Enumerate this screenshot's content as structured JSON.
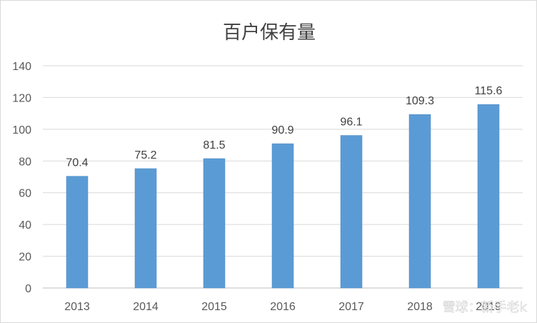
{
  "chart_data": {
    "type": "bar",
    "title": "百户保有量",
    "categories": [
      "2013",
      "2014",
      "2015",
      "2016",
      "2017",
      "2018",
      "2019"
    ],
    "values": [
      70.4,
      75.2,
      81.5,
      90.9,
      96.1,
      109.3,
      115.6
    ],
    "data_labels": [
      "70.4",
      "75.2",
      "81.5",
      "90.9",
      "96.1",
      "109.3",
      "115.6"
    ],
    "xlabel": "",
    "ylabel": "",
    "ylim": [
      0,
      140
    ],
    "yticks": [
      0,
      20,
      40,
      60,
      80,
      100,
      120,
      140
    ],
    "grid": true,
    "legend": "none",
    "colors": {
      "bar": "#5b9bd5",
      "bar_edge": "#4a86c0",
      "grid": "#d9d9d9",
      "axis": "#bfbfbf"
    }
  },
  "watermark": "雪球：新手老k"
}
